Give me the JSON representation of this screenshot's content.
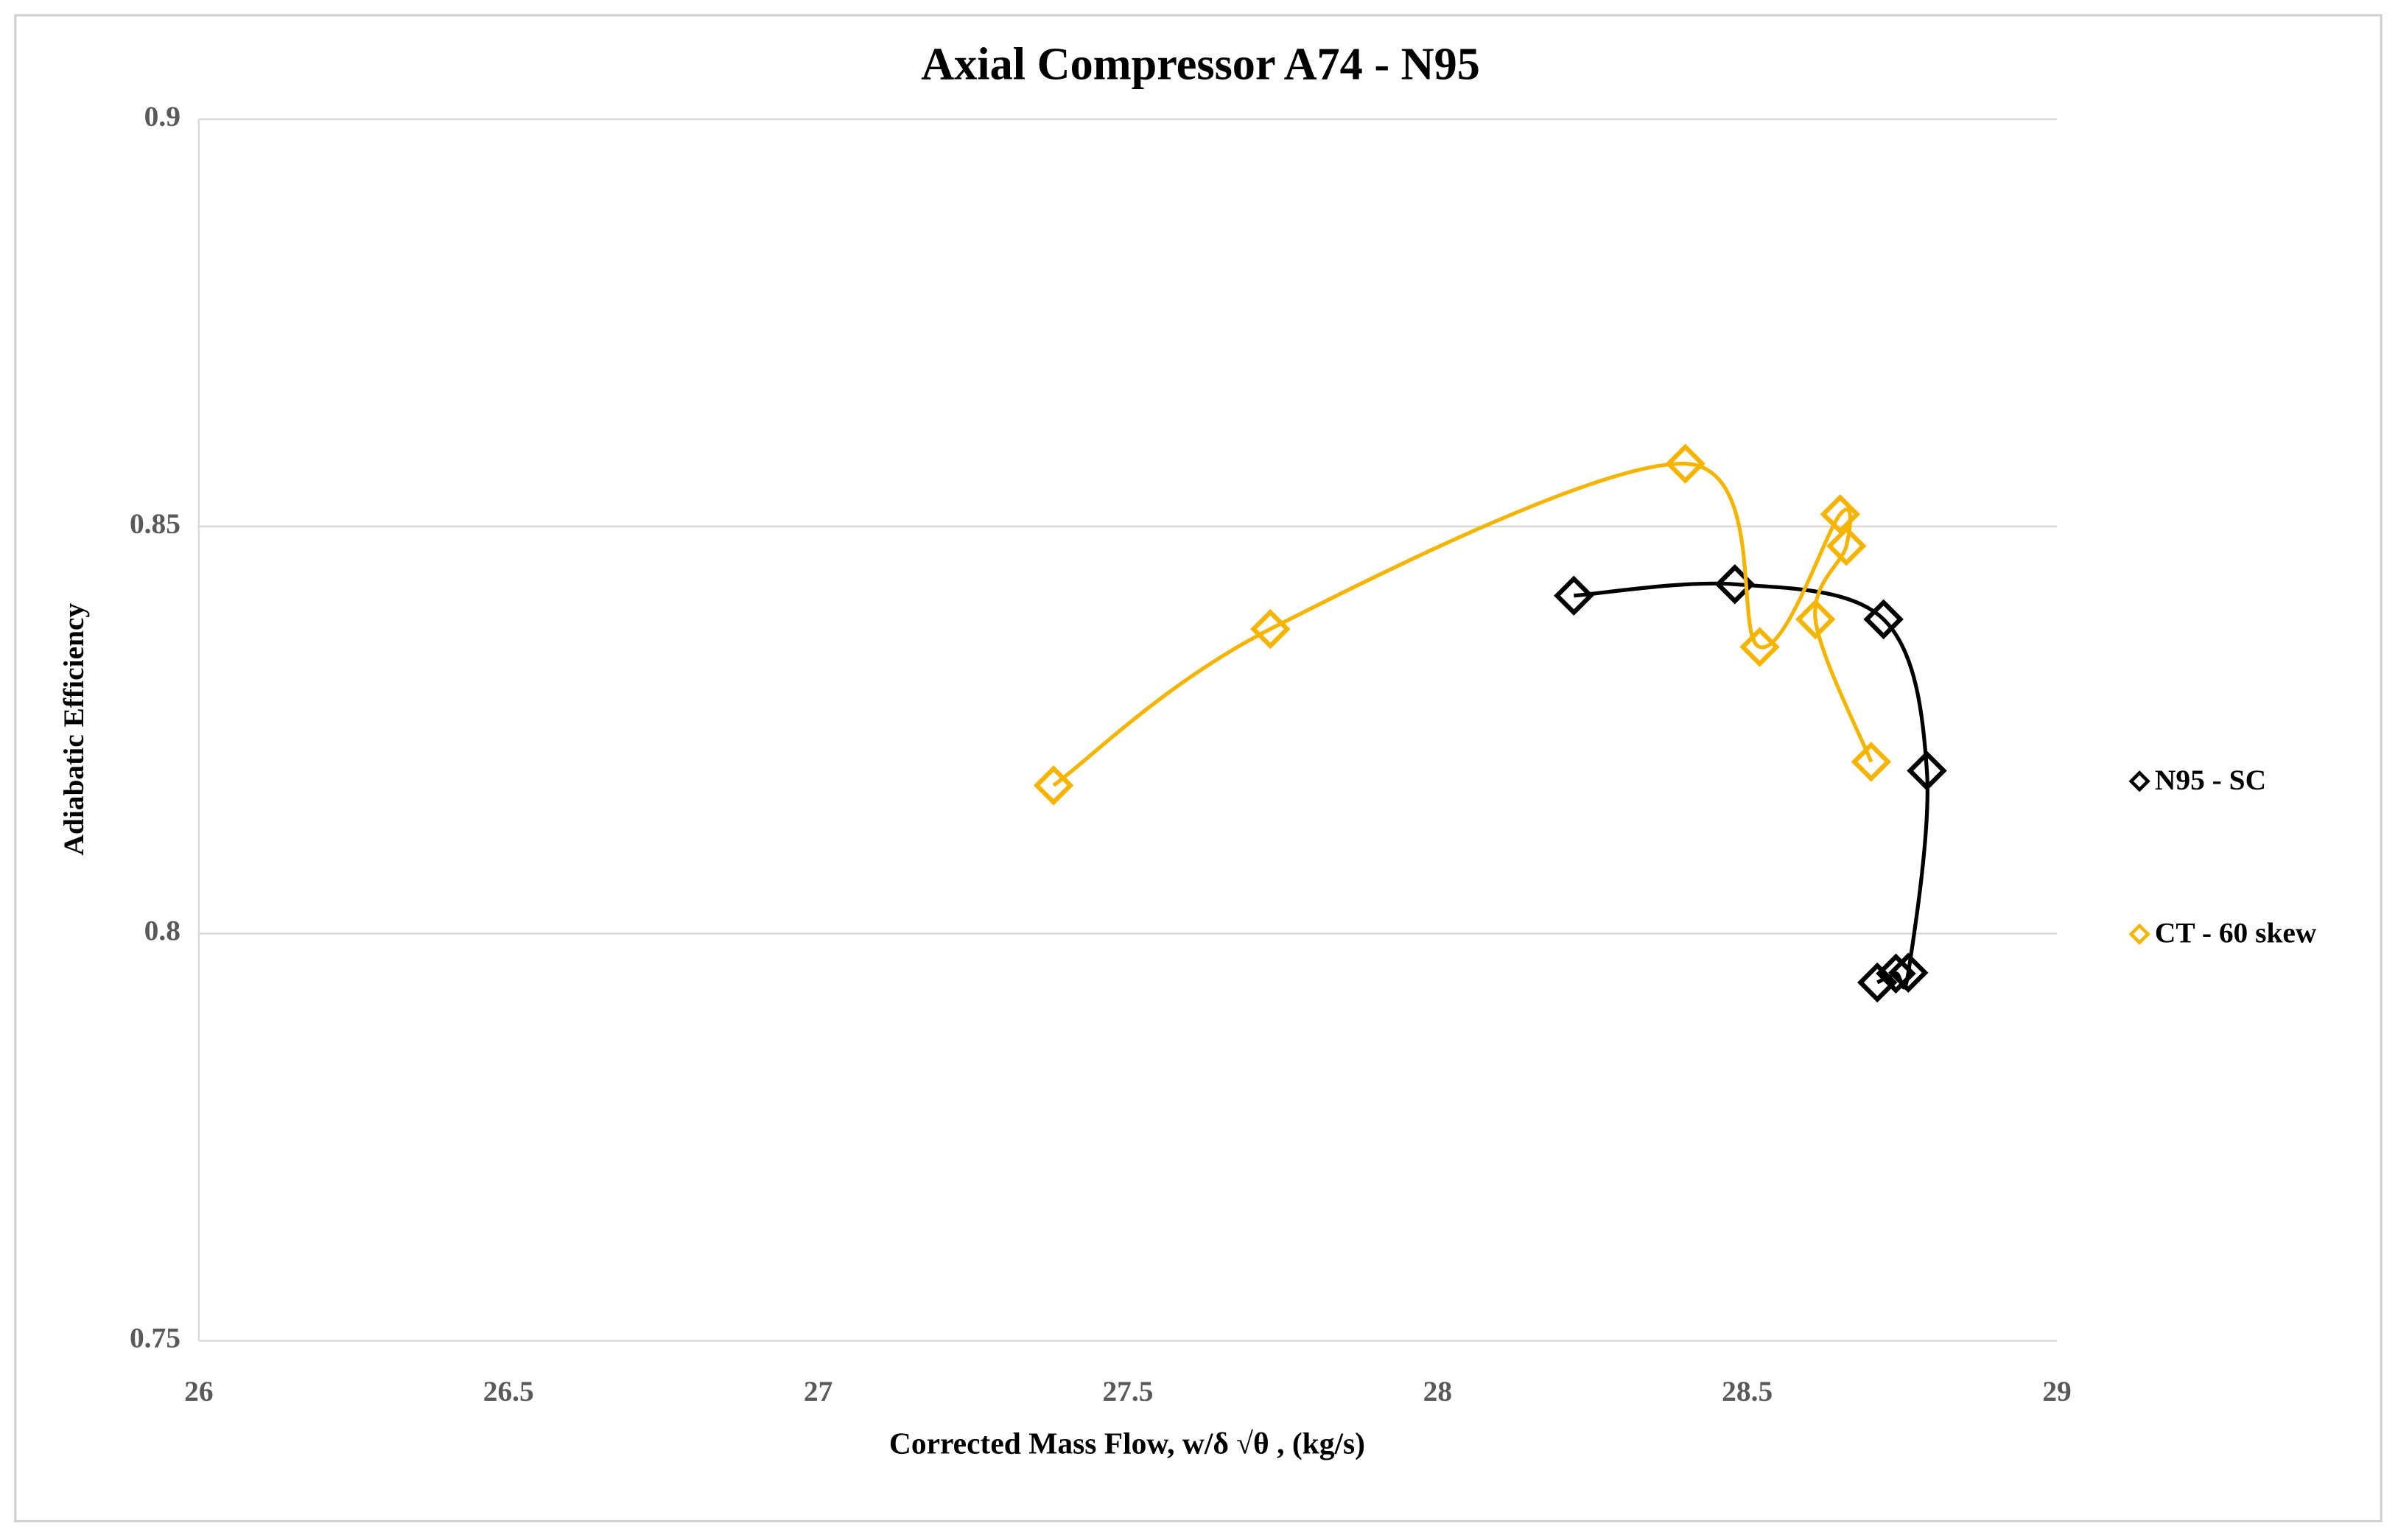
{
  "chart_data": {
    "type": "scatter",
    "title": "Axial Compressor A74 - N95",
    "x_label": "Corrected Mass Flow, w/δ √θ , (kg/s)",
    "y_label": "Adiabatic  Efficiency",
    "xlim": [
      26,
      29
    ],
    "xticks": [
      26,
      26.5,
      27,
      27.5,
      28,
      28.5,
      29
    ],
    "ylim": [
      0.75,
      0.9
    ],
    "yticks": [
      0.75,
      0.8,
      0.85,
      0.9
    ],
    "grid": true,
    "legend": "right",
    "smooth_lines": true,
    "series": [
      {
        "name": "N95 - SC",
        "color": "#000000",
        "x": [
          28.22,
          28.48,
          28.72,
          28.79,
          28.76,
          28.74,
          28.71
        ],
        "values": [
          0.8415,
          0.8429,
          0.8386,
          0.82,
          0.7952,
          0.7951,
          0.794
        ]
      },
      {
        "name": "CT - 60 skew",
        "color": "#f5b400",
        "x": [
          27.38,
          27.73,
          28.4,
          28.52,
          28.65,
          28.66,
          28.61,
          28.7
        ],
        "values": [
          0.8182,
          0.8374,
          0.8577,
          0.8352,
          0.8515,
          0.8476,
          0.8386,
          0.8211
        ]
      }
    ]
  }
}
